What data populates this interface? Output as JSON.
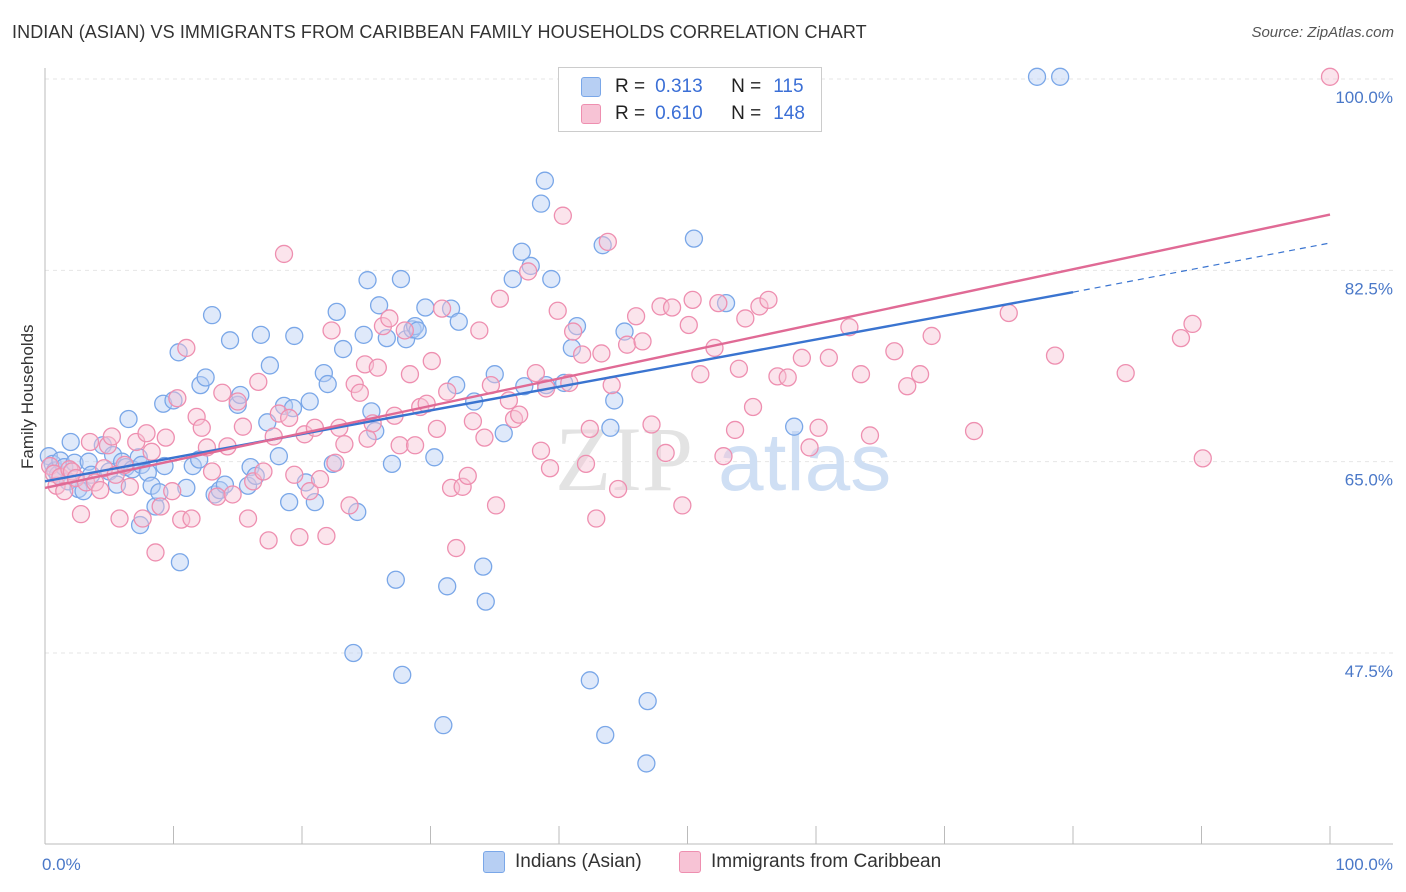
{
  "header": {
    "title": "INDIAN (ASIAN) VS IMMIGRANTS FROM CARIBBEAN FAMILY HOUSEHOLDS CORRELATION CHART",
    "source": "Source: ZipAtlas.com"
  },
  "watermark": {
    "zip": "ZIP",
    "atlas": "atlas"
  },
  "legend": {
    "r_label": "R =",
    "n_label": "N =",
    "series": [
      {
        "r": "0.313",
        "n": "115",
        "color": "#7aa7e8",
        "fill": "#b7cff3"
      },
      {
        "r": "0.610",
        "n": "148",
        "color": "#ee8fb0",
        "fill": "#f7c3d5"
      }
    ]
  },
  "chart_data": {
    "type": "scatter",
    "title": "INDIAN (ASIAN) VS IMMIGRANTS FROM CARIBBEAN FAMILY HOUSEHOLDS CORRELATION CHART",
    "xlabel": "",
    "ylabel": "Family Households",
    "xlim": [
      0,
      100
    ],
    "ylim": [
      30,
      102
    ],
    "x_tick_labels": [
      "0.0%",
      "100.0%"
    ],
    "y_ticks": [
      47.5,
      65.0,
      82.5,
      100.0
    ],
    "y_tick_labels": [
      "47.5%",
      "65.0%",
      "82.5%",
      "100.0%"
    ],
    "grid": true,
    "legend_position": "top-center",
    "series": [
      {
        "name": "Indians (Asian)",
        "color": "#3a74d0",
        "marker_fill": "#b7cff3",
        "marker_stroke": "#7aa7e8",
        "trend": {
          "x0": 0,
          "y0": 63.2,
          "x1": 80,
          "y1": 80.5,
          "dash_to_x": 100,
          "dash_to_y": 85.0
        },
        "points": [
          [
            0.3,
            65.5
          ],
          [
            0.6,
            64.8
          ],
          [
            0.8,
            64.2
          ],
          [
            1.0,
            63.8
          ],
          [
            1.2,
            65.1
          ],
          [
            1.5,
            64.5
          ],
          [
            1.8,
            63.2
          ],
          [
            2.0,
            66.8
          ],
          [
            2.3,
            64.9
          ],
          [
            2.6,
            62.5
          ],
          [
            3.0,
            62.3
          ],
          [
            3.4,
            65.0
          ],
          [
            3.6,
            63.8
          ],
          [
            4.5,
            66.5
          ],
          [
            5.0,
            64.1
          ],
          [
            5.3,
            65.6
          ],
          [
            5.6,
            62.9
          ],
          [
            6.0,
            65.0
          ],
          [
            6.3,
            64.5
          ],
          [
            6.5,
            68.9
          ],
          [
            6.8,
            64.3
          ],
          [
            7.3,
            65.4
          ],
          [
            7.5,
            64.7
          ],
          [
            7.4,
            59.2
          ],
          [
            8.0,
            64.0
          ],
          [
            8.3,
            62.8
          ],
          [
            8.6,
            60.9
          ],
          [
            8.9,
            62.2
          ],
          [
            9.3,
            64.6
          ],
          [
            9.2,
            70.3
          ],
          [
            10.0,
            70.6
          ],
          [
            10.4,
            75.0
          ],
          [
            10.5,
            55.8
          ],
          [
            11.0,
            62.6
          ],
          [
            11.5,
            64.6
          ],
          [
            12.0,
            65.2
          ],
          [
            12.1,
            72.0
          ],
          [
            12.5,
            72.7
          ],
          [
            13.0,
            78.4
          ],
          [
            13.2,
            62.0
          ],
          [
            13.6,
            62.4
          ],
          [
            14.0,
            62.9
          ],
          [
            14.4,
            76.1
          ],
          [
            15.0,
            70.2
          ],
          [
            15.2,
            71.1
          ],
          [
            15.8,
            62.8
          ],
          [
            16.0,
            64.5
          ],
          [
            16.4,
            63.7
          ],
          [
            16.8,
            76.6
          ],
          [
            17.3,
            68.6
          ],
          [
            17.5,
            73.8
          ],
          [
            18.2,
            65.5
          ],
          [
            18.6,
            70.1
          ],
          [
            19.0,
            61.3
          ],
          [
            19.3,
            69.9
          ],
          [
            19.4,
            76.5
          ],
          [
            20.3,
            63.1
          ],
          [
            20.6,
            70.5
          ],
          [
            21.0,
            61.3
          ],
          [
            21.7,
            73.1
          ],
          [
            22.0,
            72.1
          ],
          [
            22.4,
            64.8
          ],
          [
            22.7,
            78.7
          ],
          [
            23.2,
            75.3
          ],
          [
            24.0,
            47.5
          ],
          [
            24.3,
            60.4
          ],
          [
            24.8,
            76.6
          ],
          [
            25.1,
            81.6
          ],
          [
            25.4,
            69.6
          ],
          [
            25.7,
            67.8
          ],
          [
            26.0,
            79.3
          ],
          [
            26.6,
            76.3
          ],
          [
            27.0,
            64.8
          ],
          [
            27.3,
            54.2
          ],
          [
            27.7,
            81.7
          ],
          [
            27.8,
            45.5
          ],
          [
            28.1,
            76.2
          ],
          [
            28.6,
            77.1
          ],
          [
            28.8,
            77.4
          ],
          [
            29.0,
            77.0
          ],
          [
            29.6,
            79.1
          ],
          [
            30.3,
            65.4
          ],
          [
            31.0,
            40.9
          ],
          [
            31.3,
            53.6
          ],
          [
            31.6,
            79.0
          ],
          [
            32.0,
            72.0
          ],
          [
            32.2,
            77.8
          ],
          [
            33.4,
            70.5
          ],
          [
            34.1,
            55.4
          ],
          [
            34.3,
            52.2
          ],
          [
            35.0,
            73.0
          ],
          [
            35.7,
            67.6
          ],
          [
            36.4,
            81.7
          ],
          [
            37.1,
            84.2
          ],
          [
            37.3,
            71.9
          ],
          [
            37.8,
            82.9
          ],
          [
            38.6,
            88.6
          ],
          [
            38.9,
            90.7
          ],
          [
            39.0,
            72.0
          ],
          [
            39.4,
            81.7
          ],
          [
            40.4,
            72.2
          ],
          [
            41.0,
            75.4
          ],
          [
            41.4,
            77.4
          ],
          [
            42.4,
            45.0
          ],
          [
            43.4,
            84.8
          ],
          [
            43.6,
            40.0
          ],
          [
            44.0,
            68.1
          ],
          [
            44.3,
            70.6
          ],
          [
            45.1,
            76.9
          ],
          [
            46.8,
            37.4
          ],
          [
            46.9,
            43.1
          ],
          [
            50.5,
            85.4
          ],
          [
            53.0,
            79.5
          ],
          [
            58.3,
            68.2
          ],
          [
            77.2,
            100.2
          ],
          [
            79.0,
            100.2
          ]
        ]
      },
      {
        "name": "Immigrants from Caribbean",
        "color": "#e06a95",
        "marker_fill": "#f7c3d5",
        "marker_stroke": "#ee8fb0",
        "trend": {
          "x0": 0,
          "y0": 62.6,
          "x1": 100,
          "y1": 87.6
        },
        "points": [
          [
            0.4,
            64.6
          ],
          [
            0.7,
            63.9
          ],
          [
            0.9,
            62.8
          ],
          [
            1.2,
            63.6
          ],
          [
            1.5,
            62.3
          ],
          [
            1.9,
            64.3
          ],
          [
            2.1,
            64.1
          ],
          [
            2.4,
            63.5
          ],
          [
            2.8,
            60.2
          ],
          [
            3.2,
            63.1
          ],
          [
            3.5,
            66.8
          ],
          [
            3.9,
            63.1
          ],
          [
            4.3,
            62.4
          ],
          [
            4.6,
            64.4
          ],
          [
            4.9,
            66.5
          ],
          [
            5.2,
            67.3
          ],
          [
            5.5,
            63.8
          ],
          [
            5.8,
            59.8
          ],
          [
            6.2,
            64.7
          ],
          [
            6.6,
            62.7
          ],
          [
            7.1,
            66.8
          ],
          [
            7.6,
            59.8
          ],
          [
            7.9,
            67.6
          ],
          [
            8.3,
            65.9
          ],
          [
            8.6,
            56.7
          ],
          [
            9.0,
            60.9
          ],
          [
            9.4,
            67.2
          ],
          [
            9.9,
            62.3
          ],
          [
            10.3,
            70.8
          ],
          [
            10.6,
            59.7
          ],
          [
            11.0,
            75.4
          ],
          [
            11.4,
            59.8
          ],
          [
            11.8,
            69.1
          ],
          [
            12.2,
            68.1
          ],
          [
            12.6,
            66.3
          ],
          [
            13.0,
            64.1
          ],
          [
            13.4,
            61.8
          ],
          [
            13.8,
            71.3
          ],
          [
            14.2,
            66.4
          ],
          [
            14.6,
            62.0
          ],
          [
            15.0,
            70.5
          ],
          [
            15.4,
            68.2
          ],
          [
            15.8,
            59.8
          ],
          [
            16.2,
            63.2
          ],
          [
            16.6,
            72.3
          ],
          [
            17.0,
            64.1
          ],
          [
            17.4,
            57.8
          ],
          [
            17.8,
            67.3
          ],
          [
            18.2,
            69.4
          ],
          [
            18.6,
            84.0
          ],
          [
            19.0,
            69.0
          ],
          [
            19.4,
            63.8
          ],
          [
            19.8,
            58.1
          ],
          [
            20.2,
            67.5
          ],
          [
            20.6,
            62.3
          ],
          [
            21.0,
            68.1
          ],
          [
            21.4,
            63.4
          ],
          [
            21.9,
            58.2
          ],
          [
            22.3,
            77.0
          ],
          [
            22.6,
            64.9
          ],
          [
            22.9,
            68.1
          ],
          [
            23.3,
            66.6
          ],
          [
            23.7,
            61.0
          ],
          [
            24.1,
            72.1
          ],
          [
            24.5,
            71.3
          ],
          [
            24.9,
            73.9
          ],
          [
            25.1,
            67.1
          ],
          [
            25.5,
            68.5
          ],
          [
            25.9,
            73.6
          ],
          [
            26.3,
            77.4
          ],
          [
            26.8,
            78.1
          ],
          [
            27.2,
            69.2
          ],
          [
            27.6,
            66.5
          ],
          [
            28.0,
            77.0
          ],
          [
            28.4,
            73.0
          ],
          [
            28.8,
            66.5
          ],
          [
            29.2,
            70.0
          ],
          [
            29.7,
            70.3
          ],
          [
            30.1,
            74.2
          ],
          [
            30.5,
            68.0
          ],
          [
            30.9,
            79.0
          ],
          [
            31.3,
            71.4
          ],
          [
            31.6,
            62.6
          ],
          [
            32.0,
            57.1
          ],
          [
            32.5,
            62.7
          ],
          [
            32.9,
            63.7
          ],
          [
            33.3,
            68.7
          ],
          [
            33.8,
            77.0
          ],
          [
            34.2,
            67.2
          ],
          [
            34.7,
            72.0
          ],
          [
            35.1,
            61.0
          ],
          [
            35.4,
            79.9
          ],
          [
            36.1,
            70.6
          ],
          [
            36.5,
            68.9
          ],
          [
            36.9,
            69.3
          ],
          [
            37.6,
            82.4
          ],
          [
            38.2,
            73.1
          ],
          [
            38.6,
            66.0
          ],
          [
            39.0,
            71.7
          ],
          [
            39.3,
            64.4
          ],
          [
            39.9,
            78.8
          ],
          [
            40.3,
            87.5
          ],
          [
            40.8,
            72.2
          ],
          [
            41.1,
            76.9
          ],
          [
            41.8,
            74.8
          ],
          [
            42.1,
            64.8
          ],
          [
            42.4,
            68.0
          ],
          [
            42.9,
            59.8
          ],
          [
            43.3,
            74.9
          ],
          [
            43.8,
            85.1
          ],
          [
            44.1,
            72.0
          ],
          [
            44.6,
            62.5
          ],
          [
            45.3,
            75.7
          ],
          [
            46.0,
            78.3
          ],
          [
            46.5,
            76.0
          ],
          [
            47.2,
            68.4
          ],
          [
            47.9,
            79.2
          ],
          [
            48.3,
            65.8
          ],
          [
            48.8,
            79.1
          ],
          [
            49.6,
            61.0
          ],
          [
            50.1,
            77.5
          ],
          [
            50.4,
            79.8
          ],
          [
            51.0,
            73.0
          ],
          [
            52.1,
            75.4
          ],
          [
            52.4,
            79.5
          ],
          [
            52.8,
            65.5
          ],
          [
            53.7,
            67.9
          ],
          [
            54.0,
            73.5
          ],
          [
            54.5,
            78.1
          ],
          [
            55.1,
            70.0
          ],
          [
            55.6,
            79.2
          ],
          [
            56.3,
            79.8
          ],
          [
            57.0,
            72.8
          ],
          [
            57.8,
            72.7
          ],
          [
            58.9,
            74.5
          ],
          [
            59.5,
            66.3
          ],
          [
            60.2,
            68.1
          ],
          [
            61.0,
            74.5
          ],
          [
            62.6,
            77.3
          ],
          [
            63.5,
            73.0
          ],
          [
            64.2,
            67.4
          ],
          [
            66.1,
            75.1
          ],
          [
            67.1,
            71.9
          ],
          [
            68.1,
            73.0
          ],
          [
            69.0,
            76.5
          ],
          [
            72.3,
            67.8
          ],
          [
            75.0,
            78.6
          ],
          [
            78.6,
            74.7
          ],
          [
            84.1,
            73.1
          ],
          [
            88.4,
            76.3
          ],
          [
            89.3,
            77.6
          ],
          [
            90.1,
            65.3
          ],
          [
            100.0,
            100.2
          ]
        ]
      }
    ]
  },
  "bottom_legend": [
    "Indians (Asian)",
    "Immigrants from Caribbean"
  ]
}
